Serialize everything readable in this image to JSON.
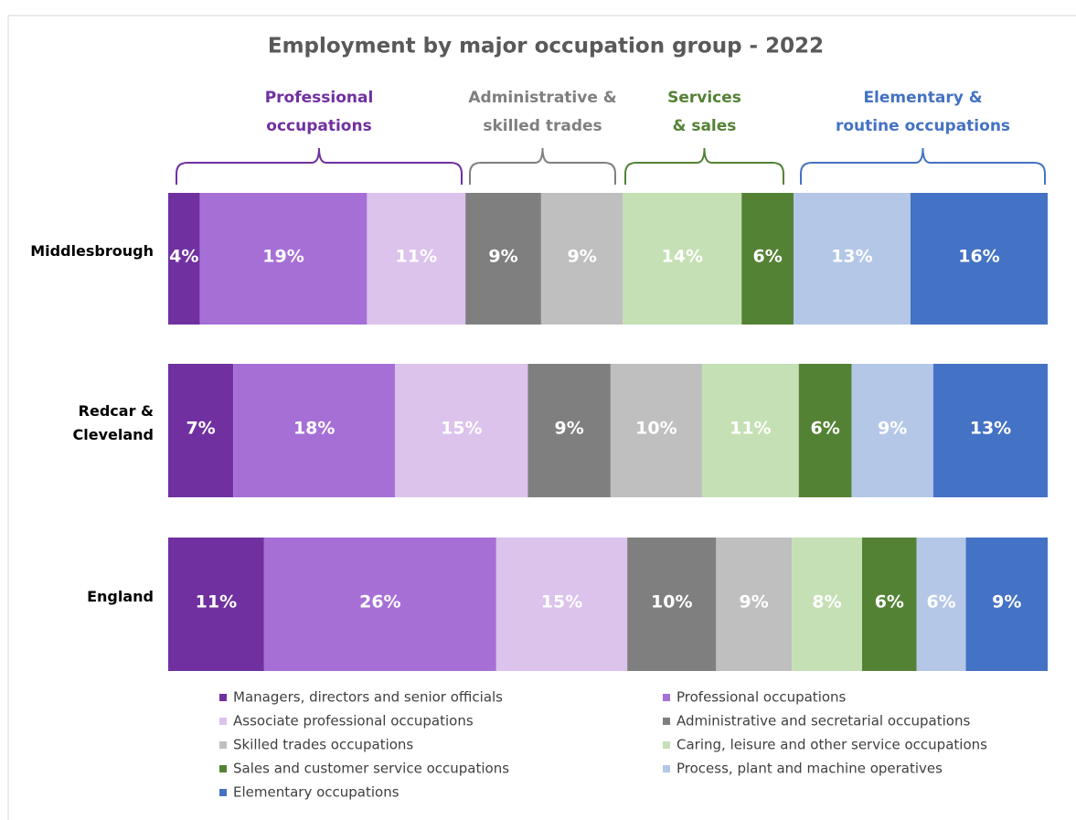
{
  "chart_data": {
    "type": "stacked_bar_horizontal",
    "title": "Employment by major occupation group - 2022",
    "categories": [
      "Middlesbrough",
      "Redcar & Cleveland",
      "England"
    ],
    "xlim": [
      0,
      100
    ],
    "groups": [
      {
        "label_lines": [
          "Professional",
          "occupations"
        ],
        "color": "#7030a0"
      },
      {
        "label_lines": [
          "Administrative &",
          "skilled trades"
        ],
        "color": "#7f7f7f"
      },
      {
        "label_lines": [
          "Services",
          "& sales"
        ],
        "color": "#548235"
      },
      {
        "label_lines": [
          "Elementary &",
          "routine occupations"
        ],
        "color": "#4472c4"
      }
    ],
    "series": [
      {
        "name": "Managers, directors and senior officials",
        "color": "#7030a0",
        "values": [
          3.6,
          7.4,
          10.9
        ],
        "value_labels": [
          "4%",
          "7%",
          "11%"
        ]
      },
      {
        "name": "Professional occupations",
        "color": "#a66fd6",
        "values": [
          19.0,
          18.4,
          26.4
        ],
        "value_labels": [
          "19%",
          "18%",
          "26%"
        ]
      },
      {
        "name": "Associate professional occupations",
        "color": "#dbc3ec",
        "values": [
          11.2,
          15.1,
          14.9
        ],
        "value_labels": [
          "11%",
          "15%",
          "15%"
        ]
      },
      {
        "name": "Administrative and secretarial occupations",
        "color": "#7f7f7f",
        "values": [
          8.6,
          9.4,
          10.1
        ],
        "value_labels": [
          "9%",
          "9%",
          "10%"
        ]
      },
      {
        "name": "Skilled trades occupations",
        "color": "#bfbfbf",
        "values": [
          9.3,
          10.4,
          8.6
        ],
        "value_labels": [
          "9%",
          "10%",
          "9%"
        ]
      },
      {
        "name": "Caring, leisure and other service occupations",
        "color": "#c5e0b4",
        "values": [
          13.5,
          11.0,
          8.0
        ],
        "value_labels": [
          "14%",
          "11%",
          "8%"
        ]
      },
      {
        "name": "Sales and customer service occupations",
        "color": "#548235",
        "values": [
          5.9,
          6.0,
          6.2
        ],
        "value_labels": [
          "6%",
          "6%",
          "6%"
        ]
      },
      {
        "name": "Process, plant and machine operatives",
        "color": "#b4c7e7",
        "values": [
          13.3,
          9.3,
          5.6
        ],
        "value_labels": [
          "13%",
          "9%",
          "6%"
        ]
      },
      {
        "name": "Elementary occupations",
        "color": "#4472c4",
        "values": [
          15.6,
          13.0,
          9.3
        ],
        "value_labels": [
          "16%",
          "13%",
          "9%"
        ]
      }
    ]
  }
}
